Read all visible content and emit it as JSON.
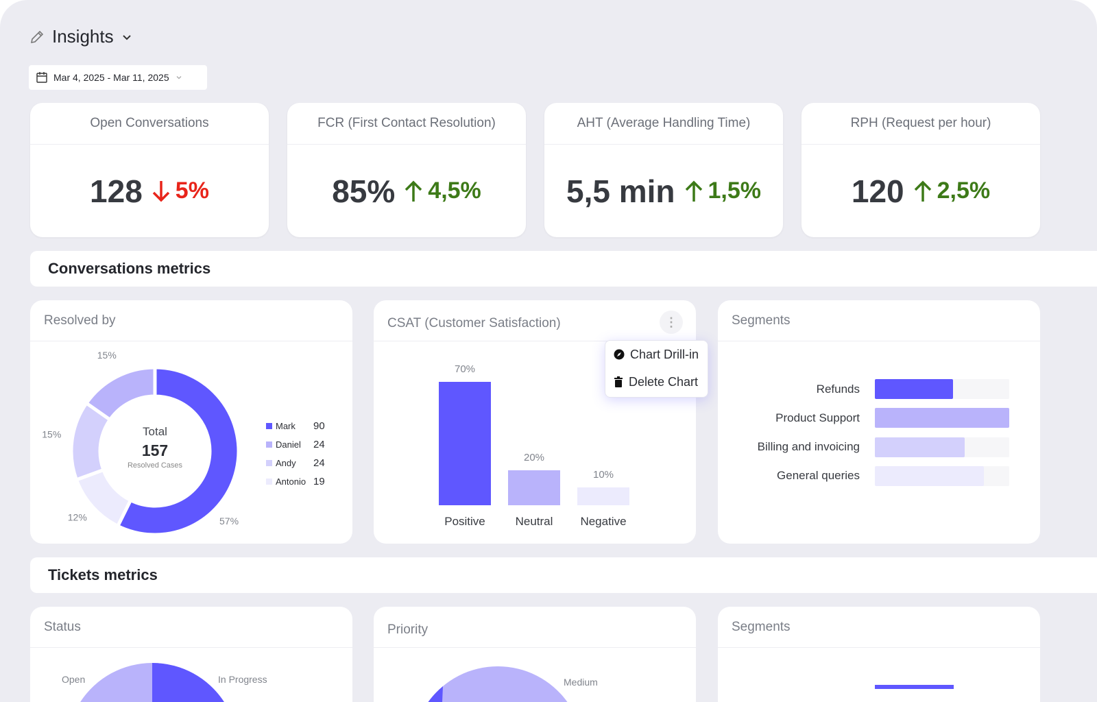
{
  "header": {
    "title": "Insights",
    "date_range": "Mar 4, 2025 - Mar 11, 2025"
  },
  "kpis": [
    {
      "title": "Open Conversations",
      "value": "128",
      "delta": "5%",
      "direction": "down"
    },
    {
      "title": "FCR (First Contact Resolution)",
      "value": "85%",
      "delta": "4,5%",
      "direction": "up"
    },
    {
      "title": "AHT (Average Handling Time)",
      "value": "5,5 min",
      "delta": "1,5%",
      "direction": "up"
    },
    {
      "title": "RPH (Request per hour)",
      "value": "120",
      "delta": "2,5%",
      "direction": "up"
    }
  ],
  "sections": {
    "conversations": "Conversations metrics",
    "tickets": "Tickets metrics"
  },
  "colors": {
    "primary": "#5f57ff",
    "c2": "#b9b3fb",
    "c3": "#d3d0fc",
    "c4": "#ecebfd",
    "up": "#3d7a18",
    "down": "#e8241a"
  },
  "chart_data": [
    {
      "type": "pie",
      "title": "Resolved by",
      "center_label": "Total",
      "center_value": "157",
      "center_sub": "Resolved Cases",
      "slices": [
        {
          "name": "Mark",
          "value": 90,
          "pct": "57%"
        },
        {
          "name": "Antonio",
          "value": 19,
          "pct": "12%"
        },
        {
          "name": "Andy",
          "value": 24,
          "pct": "15%"
        },
        {
          "name": "Daniel",
          "value": 24,
          "pct": "15%"
        }
      ],
      "legend_order": [
        "Mark",
        "Daniel",
        "Andy",
        "Antonio"
      ]
    },
    {
      "type": "bar",
      "title": "CSAT (Customer Satisfaction)",
      "categories": [
        "Positive",
        "Neutral",
        "Negative"
      ],
      "values": [
        70,
        20,
        10
      ],
      "labels": [
        "70%",
        "20%",
        "10%"
      ],
      "ylim": [
        0,
        70
      ]
    },
    {
      "type": "bar",
      "title": "Segments",
      "orientation": "horizontal",
      "categories": [
        "Refunds",
        "Product Support",
        "Billing and invoicing",
        "General queries"
      ],
      "values": [
        58,
        100,
        67,
        81
      ]
    }
  ],
  "menu": {
    "drill": "Chart Drill-in",
    "delete": "Delete Chart"
  },
  "tickets": {
    "status_title": "Status",
    "status_labels": [
      "Open",
      "In Progress"
    ],
    "priority_title": "Priority",
    "priority_labels": [
      "Medium"
    ],
    "segments_title": "Segments"
  }
}
